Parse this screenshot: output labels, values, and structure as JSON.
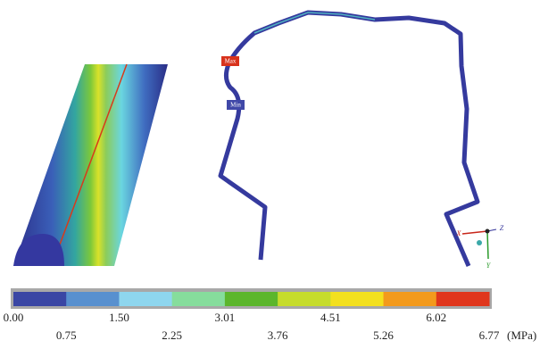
{
  "markers": {
    "max": "Max",
    "min": "Min"
  },
  "axes": {
    "x": "X",
    "y": "Y",
    "z": "Z"
  },
  "colorbar": {
    "colors": [
      "#3a46a4",
      "#5890cf",
      "#8ed6ee",
      "#86dd9c",
      "#5cb62c",
      "#c6dc2c",
      "#f3e01e",
      "#f39a1c",
      "#e0361c"
    ],
    "labels": [
      "0.00",
      "0.75",
      "1.50",
      "2.25",
      "3.01",
      "3.76",
      "4.51",
      "5.26",
      "6.02",
      "6.77"
    ],
    "unit": "(MPa)"
  }
}
